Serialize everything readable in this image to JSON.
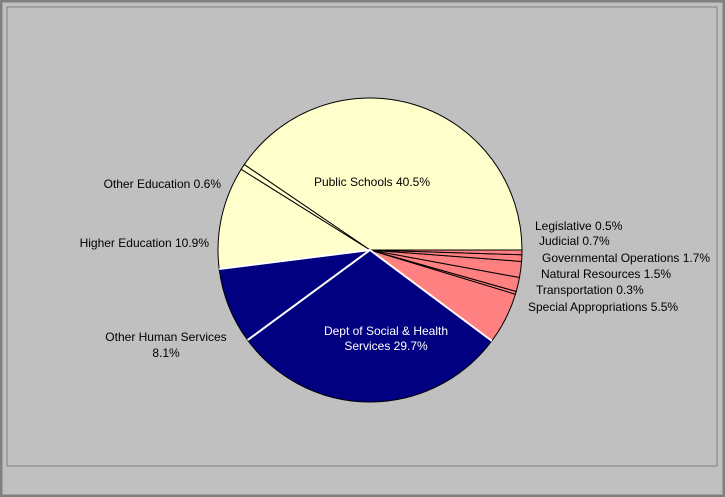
{
  "chart_data": {
    "type": "pie",
    "start_angle_deg": 0,
    "direction": "counterclockwise",
    "slices": [
      {
        "label": "Public Schools",
        "value": 40.5,
        "label_text": "Public Schools 40.5%",
        "color": "#FFFFCC"
      },
      {
        "label": "Other Education",
        "value": 0.6,
        "label_text": "Other Education 0.6%",
        "color": "#FFFFCC"
      },
      {
        "label": "Higher Education",
        "value": 10.9,
        "label_text": "Higher Education 10.9%",
        "color": "#FFFFCC"
      },
      {
        "label": "Other Human Services",
        "value": 8.1,
        "label_text": [
          "Other Human Services",
          "8.1%"
        ],
        "color": "#000080"
      },
      {
        "label": "Dept of Social & Health Services",
        "value": 29.7,
        "label_text": [
          "Dept of Social & Health",
          "Services 29.7%"
        ],
        "color": "#000080",
        "label_color": "#FFFFFF"
      },
      {
        "label": "Special Appropriations",
        "value": 5.5,
        "label_text": "Special Appropriations 5.5%",
        "color": "#FF8080"
      },
      {
        "label": "Transportation",
        "value": 0.3,
        "label_text": "Transportation 0.3%",
        "color": "#FF8080"
      },
      {
        "label": "Natural Resources",
        "value": 1.5,
        "label_text": "Natural Resources 1.5%",
        "color": "#FF8080"
      },
      {
        "label": "Governmental Operations",
        "value": 1.7,
        "label_text": "Governmental Operations 1.7%",
        "color": "#FF8080"
      },
      {
        "label": "Judicial",
        "value": 0.7,
        "label_text": "Judicial 0.7%",
        "color": "#FF8080"
      },
      {
        "label": "Legislative",
        "value": 0.5,
        "label_text": "Legislative 0.5%",
        "color": "#FF8080"
      }
    ],
    "background_color": "#C0C0C0",
    "border_color": "#808080",
    "slice_border_color": "#000000",
    "separator_color": "#FFFFFF",
    "legend": "none",
    "grid": false
  }
}
